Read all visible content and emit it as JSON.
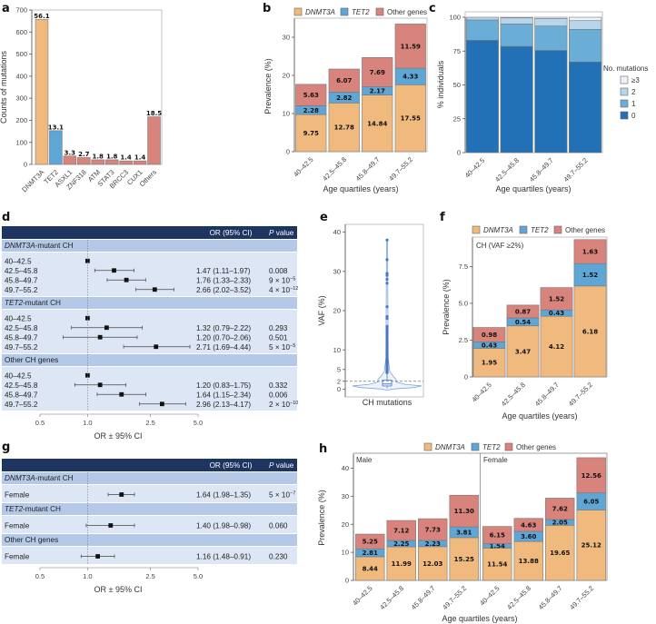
{
  "colors": {
    "dnmt3a": "#f0b97e",
    "tet2": "#5ea6d6",
    "other": "#d8837c",
    "mut0": "#2270b5",
    "mut1": "#6aaed8",
    "mut2": "#b9d5ea",
    "mut3": "#eef3fb",
    "forest_header": "#1e3461",
    "forest_group": "#b3c9e7",
    "forest_row": "#dce6f4"
  },
  "chart_data": [
    {
      "panel": "a",
      "type": "bar",
      "categories": [
        "DNMT3A",
        "TET2",
        "ASXL1",
        "ZNF318",
        "ATM",
        "STAT3",
        "BRCC3",
        "CUX1",
        "Others"
      ],
      "values": [
        657,
        153,
        38,
        31,
        21,
        21,
        16,
        16,
        216
      ],
      "data_labels": [
        "56.1",
        "13.1",
        "3.3",
        "2.7",
        "1.8",
        "1.8",
        "1.4",
        "1.4",
        "18.5"
      ],
      "bar_colors": [
        "dnmt3a",
        "tet2",
        "other",
        "other",
        "other",
        "other",
        "other",
        "other",
        "other"
      ],
      "xlabel": "",
      "ylabel": "Counts of mutations",
      "ylim": [
        0,
        700
      ],
      "yticks": [
        0,
        100,
        200,
        300,
        400,
        500,
        600,
        700
      ]
    },
    {
      "panel": "b",
      "type": "bar",
      "stacked": true,
      "categories": [
        "40–42.5",
        "42.5–45.8",
        "45.8–49.7",
        "49.7–55.2"
      ],
      "series": [
        {
          "name": "DNMT3A",
          "color": "dnmt3a",
          "italic": true,
          "values": [
            9.75,
            12.78,
            14.84,
            17.55
          ]
        },
        {
          "name": "TET2",
          "color": "tet2",
          "italic": true,
          "values": [
            2.28,
            2.82,
            2.17,
            4.33
          ]
        },
        {
          "name": "Other genes",
          "color": "other",
          "italic": false,
          "values": [
            5.63,
            6.07,
            7.69,
            11.59
          ]
        }
      ],
      "xlabel": "Age quartiles (years)",
      "ylabel": "Prevalence (%)",
      "ylim": [
        0,
        35
      ],
      "yticks": [
        0,
        10,
        20,
        30
      ],
      "legend": "top"
    },
    {
      "panel": "c",
      "type": "bar",
      "stacked": true,
      "categories": [
        "40–42.5",
        "42.5–45.8",
        "45.8–49.7",
        "49.7–55.2"
      ],
      "series": [
        {
          "name": "0",
          "color": "mut0",
          "values": [
            83,
            78.5,
            75.5,
            67
          ]
        },
        {
          "name": "1",
          "color": "mut1",
          "values": [
            15,
            16.5,
            18,
            24
          ]
        },
        {
          "name": "2",
          "color": "mut2",
          "values": [
            2,
            4.5,
            5.5,
            6.5
          ]
        },
        {
          "name": "≥3",
          "color": "mut3",
          "values": [
            0,
            0.5,
            1,
            2.5
          ]
        }
      ],
      "xlabel": "Age quartiles (years)",
      "ylabel": "% individuals",
      "ylim": [
        0,
        100
      ],
      "yticks": [
        0,
        25,
        50,
        75,
        100
      ],
      "legend_title": "No. mutations",
      "legend_order": [
        "≥3",
        "2",
        "1",
        "0"
      ],
      "legend": "right"
    },
    {
      "panel": "d",
      "type": "table",
      "subtype": "forest",
      "columns": [
        "",
        "OR (95% CI)",
        "P value"
      ],
      "xlabel": "OR ± 95% CI",
      "xticks": [
        "0.5",
        "1.0",
        "2.5",
        "5.0"
      ],
      "xtick_values": [
        0.5,
        1.0,
        2.5,
        5.0
      ],
      "reference": 1.0,
      "groups": [
        {
          "name": "DNMT3A-mutant CH",
          "italic_part": "DNMT3A",
          "rest": "-mutant CH",
          "rows": [
            {
              "label": "40–42.5",
              "or": 1.0,
              "lo": null,
              "hi": null,
              "text": "",
              "p": ""
            },
            {
              "label": "42.5–45.8",
              "or": 1.47,
              "lo": 1.11,
              "hi": 1.97,
              "text": "1.47 (1.11–1.97)",
              "p": "0.008"
            },
            {
              "label": "45.8–49.7",
              "or": 1.76,
              "lo": 1.33,
              "hi": 2.33,
              "text": "1.76 (1.33–2.33)",
              "p": "9 × 10",
              "p_exp": "−5"
            },
            {
              "label": "49.7–55.2",
              "or": 2.66,
              "lo": 2.02,
              "hi": 3.52,
              "text": "2.66 (2.02–3.52)",
              "p": "4 × 10",
              "p_exp": "−12"
            }
          ]
        },
        {
          "name": "TET2-mutant CH",
          "italic_part": "TET2",
          "rest": "-mutant CH",
          "rows": [
            {
              "label": "40–42.5",
              "or": 1.0,
              "lo": null,
              "hi": null,
              "text": "",
              "p": ""
            },
            {
              "label": "42.5–45.8",
              "or": 1.32,
              "lo": 0.79,
              "hi": 2.22,
              "text": "1.32 (0.79–2.22)",
              "p": "0.293"
            },
            {
              "label": "45.8–49.7",
              "or": 1.2,
              "lo": 0.7,
              "hi": 2.06,
              "text": "1.20 (0.70–2.06)",
              "p": "0.501"
            },
            {
              "label": "49.7–55.2",
              "or": 2.71,
              "lo": 1.69,
              "hi": 4.44,
              "text": "2.71 (1.69–4.44)",
              "p": "5 × 10",
              "p_exp": "−5"
            }
          ]
        },
        {
          "name": "Other CH genes",
          "italic_part": "",
          "rest": "Other CH genes",
          "rows": [
            {
              "label": "40–42.5",
              "or": 1.0,
              "lo": null,
              "hi": null,
              "text": "",
              "p": ""
            },
            {
              "label": "42.5–45.8",
              "or": 1.2,
              "lo": 0.83,
              "hi": 1.75,
              "text": "1.20 (0.83–1.75)",
              "p": "0.332"
            },
            {
              "label": "45.8–49.7",
              "or": 1.64,
              "lo": 1.15,
              "hi": 2.34,
              "text": "1.64 (1.15–2.34)",
              "p": "0.006"
            },
            {
              "label": "49.7–55.2",
              "or": 2.96,
              "lo": 2.13,
              "hi": 4.17,
              "text": "2.96 (2.13–4.17)",
              "p": "2 × 10",
              "p_exp": "−10"
            }
          ]
        }
      ]
    },
    {
      "panel": "e",
      "type": "scatter",
      "subtype": "violin",
      "categories": [
        "CH mutations"
      ],
      "xlabel": "CH mutations",
      "ylabel": "VAF (%)",
      "ylim": [
        -2,
        42
      ],
      "yticks": [
        0,
        2,
        5,
        10,
        20,
        30,
        40
      ],
      "threshold": 2,
      "outliers": [
        38,
        33,
        29.5,
        29,
        28,
        27,
        21,
        18.5,
        18,
        16,
        15.5,
        15,
        14.5,
        14,
        13.5,
        13,
        12.5,
        12,
        11.5,
        11,
        10.5,
        10,
        9.5,
        9,
        8.5,
        8,
        7.5,
        7,
        6.8,
        6.5,
        6.2,
        6,
        5.8,
        5.5,
        5.2,
        5,
        4.8,
        4.6,
        4.4,
        4.2
      ],
      "box": {
        "q1": 0.8,
        "median": 1.3,
        "q3": 2.3,
        "whisker_low": 0.2,
        "whisker_high": 4.0
      }
    },
    {
      "panel": "f",
      "type": "bar",
      "stacked": true,
      "annotation": "CH (VAF ≥2%)",
      "categories": [
        "40–42.5",
        "42.5–45.8",
        "45.8–49.7",
        "49.7–55.2"
      ],
      "series": [
        {
          "name": "DNMT3A",
          "color": "dnmt3a",
          "italic": true,
          "values": [
            1.95,
            3.47,
            4.12,
            6.18
          ]
        },
        {
          "name": "TET2",
          "color": "tet2",
          "italic": true,
          "values": [
            0.43,
            0.54,
            0.43,
            1.52
          ]
        },
        {
          "name": "Other genes",
          "color": "other",
          "italic": false,
          "values": [
            0.98,
            0.87,
            1.52,
            1.63
          ]
        }
      ],
      "xlabel": "Age quartiles (years)",
      "ylabel": "Prevalence (%)",
      "ylim": [
        0,
        9.5
      ],
      "yticks": [
        0,
        2.5,
        5.0,
        7.5
      ],
      "ytick_labels": [
        "0",
        "2.5",
        "5.0",
        "7.5"
      ],
      "legend": "top"
    },
    {
      "panel": "g",
      "type": "table",
      "subtype": "forest",
      "columns": [
        "",
        "OR (95% CI)",
        "P value"
      ],
      "xlabel": "OR ± 95% CI",
      "xticks": [
        "0.5",
        "1.0",
        "2.5",
        "5.0"
      ],
      "xtick_values": [
        0.5,
        1.0,
        2.5,
        5.0
      ],
      "reference": 1.0,
      "groups": [
        {
          "name": "DNMT3A-mutant CH",
          "italic_part": "DNMT3A",
          "rest": "-mutant CH",
          "rows": [
            {
              "label": "Female",
              "or": 1.64,
              "lo": 1.35,
              "hi": 1.98,
              "text": "1.64 (1.98–1.35)",
              "p": "5 × 10",
              "p_exp": "−7"
            }
          ]
        },
        {
          "name": "TET2-mutant CH",
          "italic_part": "TET2",
          "rest": "-mutant CH",
          "rows": [
            {
              "label": "Female",
              "or": 1.4,
              "lo": 0.98,
              "hi": 1.98,
              "text": "1.40 (1.98–0.98)",
              "p": "0.060"
            }
          ]
        },
        {
          "name": "Other CH genes",
          "italic_part": "",
          "rest": "Other CH genes",
          "rows": [
            {
              "label": "Female",
              "or": 1.16,
              "lo": 0.91,
              "hi": 1.48,
              "text": "1.16 (1.48–0.91)",
              "p": "0.230"
            }
          ]
        }
      ]
    },
    {
      "panel": "h",
      "type": "bar",
      "stacked": true,
      "facets": [
        {
          "name": "Male",
          "categories": [
            "40–42.5",
            "42.5–45.8",
            "45.8–49.7",
            "49.7–55.2"
          ],
          "series": [
            {
              "name": "DNMT3A",
              "color": "dnmt3a",
              "values": [
                8.44,
                11.99,
                12.03,
                15.25
              ]
            },
            {
              "name": "TET2",
              "color": "tet2",
              "values": [
                2.81,
                2.25,
                2.23,
                3.81
              ]
            },
            {
              "name": "Other genes",
              "color": "other",
              "values": [
                5.25,
                7.12,
                7.73,
                11.3
              ]
            }
          ]
        },
        {
          "name": "Female",
          "categories": [
            "40–42.5",
            "42.5–45.8",
            "45.8–49.7",
            "49.7–55.2"
          ],
          "series": [
            {
              "name": "DNMT3A",
              "color": "dnmt3a",
              "values": [
                11.54,
                13.88,
                19.65,
                25.12
              ]
            },
            {
              "name": "TET2",
              "color": "tet2",
              "values": [
                1.54,
                3.6,
                2.05,
                6.05
              ]
            },
            {
              "name": "Other genes",
              "color": "other",
              "values": [
                6.15,
                4.63,
                7.62,
                12.56
              ]
            }
          ]
        }
      ],
      "legend_items": [
        {
          "name": "DNMT3A",
          "color": "dnmt3a",
          "italic": true
        },
        {
          "name": "TET2",
          "color": "tet2",
          "italic": true
        },
        {
          "name": "Other genes",
          "color": "other",
          "italic": false
        }
      ],
      "xlabel": "Age quartiles (years)",
      "ylabel": "Prevalence (%)",
      "ylim": [
        0,
        45
      ],
      "yticks": [
        0,
        10,
        20,
        30,
        40
      ],
      "legend": "top"
    }
  ]
}
